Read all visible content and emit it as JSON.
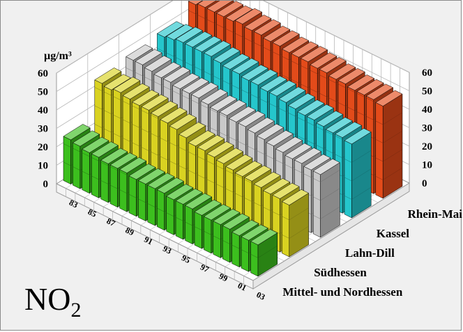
{
  "chart_data": {
    "type": "bar3d",
    "unit": "µg/m³",
    "z_ticks": [
      "0",
      "10",
      "20",
      "30",
      "40",
      "50",
      "60"
    ],
    "zlim": [
      0,
      60
    ],
    "x_tick_labels": [
      "83",
      "85",
      "87",
      "89",
      "91",
      "93",
      "95",
      "97",
      "99",
      "01",
      "03"
    ],
    "x_years": [
      1983,
      1984,
      1985,
      1986,
      1987,
      1988,
      1989,
      1990,
      1991,
      1992,
      1993,
      1994,
      1995,
      1996,
      1997,
      1998,
      1999,
      2000,
      2001,
      2002,
      2003
    ],
    "series": [
      {
        "name": "Mittel- und Nordhessen",
        "color": "#3cbf1e",
        "values": [
          24,
          23,
          22,
          22,
          21,
          21,
          21,
          20,
          20,
          20,
          20,
          19,
          19,
          19,
          18,
          18,
          18,
          18,
          17,
          17,
          17
        ]
      },
      {
        "name": "Südhessen",
        "color": "#d9d221",
        "values": [
          44,
          43,
          44,
          43,
          42,
          42,
          41,
          40,
          39,
          37,
          35,
          35,
          34,
          33,
          32,
          31,
          31,
          30,
          29,
          29,
          28
        ]
      },
      {
        "name": "Lahn-Dill",
        "color": "#c9c9c9",
        "values": [
          46,
          46,
          45,
          44,
          44,
          43,
          43,
          43,
          42,
          41,
          41,
          40,
          40,
          39,
          38,
          37,
          36,
          35,
          35,
          34,
          34
        ]
      },
      {
        "name": "Kassel",
        "color": "#25c6cc",
        "values": [
          48,
          49,
          50,
          50,
          50,
          50,
          49,
          48,
          48,
          47,
          47,
          46,
          46,
          45,
          44,
          43,
          43,
          42,
          41,
          41,
          40
        ]
      },
      {
        "name": "Rhein-Main",
        "color": "#e34b1a",
        "values": [
          55,
          56,
          56,
          56,
          56,
          57,
          56,
          56,
          55,
          55,
          54,
          54,
          54,
          53,
          53,
          52,
          52,
          51,
          51,
          51,
          50
        ]
      }
    ]
  },
  "pollutant": {
    "base": "NO",
    "sub": "2"
  }
}
